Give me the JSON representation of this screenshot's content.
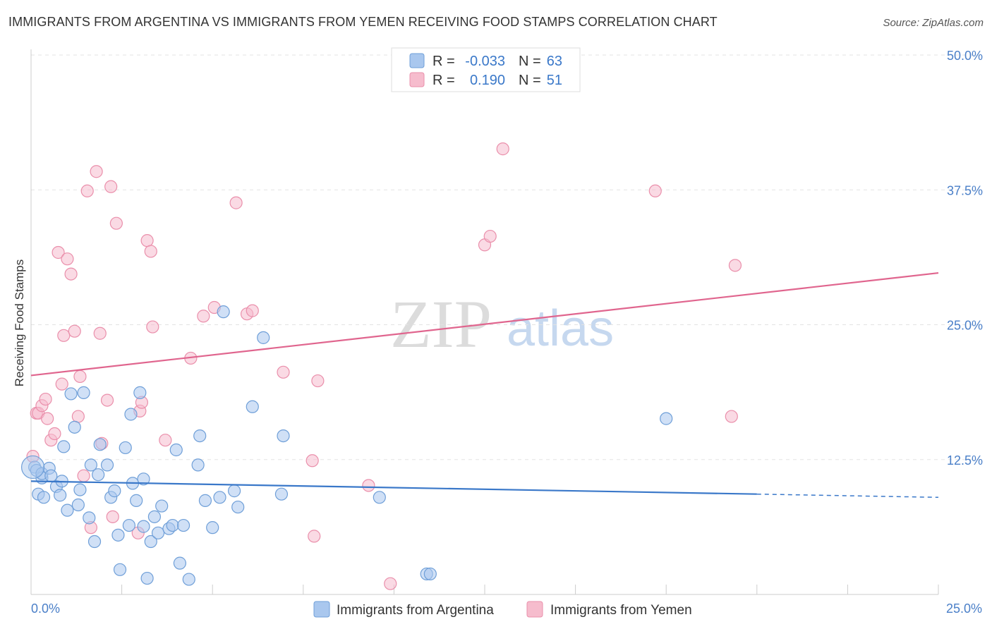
{
  "title": "IMMIGRANTS FROM ARGENTINA VS IMMIGRANTS FROM YEMEN RECEIVING FOOD STAMPS CORRELATION CHART",
  "source": "Source: ZipAtlas.com",
  "watermark": {
    "zip": "ZIP",
    "atlas": "atlas"
  },
  "colors": {
    "argentina_fill": "#a9c7ee",
    "argentina_stroke": "#6f9fd8",
    "argentina_line": "#3a78c9",
    "yemen_fill": "#f6bccd",
    "yemen_stroke": "#ea8fab",
    "yemen_line": "#e0658e",
    "grid": "#e3e3e3",
    "tick_label": "#4a7fc8"
  },
  "legend": {
    "rows": [
      {
        "r_label": "R =",
        "r_value": "-0.033",
        "n_label": "N =",
        "n_value": "63"
      },
      {
        "r_label": "R =",
        "r_value": "0.190",
        "n_label": "N =",
        "n_value": "51"
      }
    ]
  },
  "chart_data": {
    "type": "scatter",
    "title": "IMMIGRANTS FROM ARGENTINA VS IMMIGRANTS FROM YEMEN RECEIVING FOOD STAMPS CORRELATION CHART",
    "xlabel": "",
    "ylabel": "Receiving Food Stamps",
    "xlim": [
      0,
      25
    ],
    "ylim": [
      0,
      50
    ],
    "x_tick_labels": [
      "0.0%",
      "25.0%"
    ],
    "y_ticks": [
      12.5,
      25.0,
      37.5,
      50.0
    ],
    "y_tick_labels": [
      "12.5%",
      "25.0%",
      "37.5%",
      "50.0%"
    ],
    "grid": true,
    "legend_position": "top-center",
    "series": [
      {
        "name": "Immigrants from Argentina",
        "r": -0.033,
        "n": 63,
        "trend": {
          "x0": 0,
          "y0": 10.5,
          "x1": 20,
          "y1": 9.3,
          "dashed_to_x": 25,
          "dashed_to_y": 9.0
        },
        "points": [
          [
            0.1,
            11.8
          ],
          [
            0.15,
            11.5
          ],
          [
            0.2,
            9.3
          ],
          [
            0.3,
            10.8
          ],
          [
            0.3,
            11.2
          ],
          [
            0.35,
            9.0
          ],
          [
            0.5,
            11.7
          ],
          [
            0.55,
            11.0
          ],
          [
            0.7,
            10.0
          ],
          [
            0.8,
            9.2
          ],
          [
            0.85,
            10.5
          ],
          [
            0.9,
            13.7
          ],
          [
            1.0,
            7.8
          ],
          [
            1.1,
            18.6
          ],
          [
            1.2,
            15.5
          ],
          [
            1.3,
            8.3
          ],
          [
            1.35,
            9.7
          ],
          [
            1.45,
            18.7
          ],
          [
            1.6,
            7.1
          ],
          [
            1.65,
            12.0
          ],
          [
            1.75,
            4.9
          ],
          [
            1.85,
            11.1
          ],
          [
            1.9,
            13.9
          ],
          [
            2.1,
            12.0
          ],
          [
            2.2,
            9.0
          ],
          [
            2.3,
            9.6
          ],
          [
            2.4,
            5.5
          ],
          [
            2.45,
            2.3
          ],
          [
            2.6,
            13.6
          ],
          [
            2.7,
            6.4
          ],
          [
            2.75,
            16.7
          ],
          [
            2.8,
            10.3
          ],
          [
            2.9,
            8.7
          ],
          [
            3.0,
            18.7
          ],
          [
            3.1,
            10.7
          ],
          [
            3.1,
            6.3
          ],
          [
            3.2,
            1.5
          ],
          [
            3.3,
            4.9
          ],
          [
            3.4,
            7.2
          ],
          [
            3.5,
            5.7
          ],
          [
            3.6,
            8.2
          ],
          [
            3.8,
            6.1
          ],
          [
            3.9,
            6.4
          ],
          [
            4.0,
            13.4
          ],
          [
            4.1,
            2.9
          ],
          [
            4.2,
            6.4
          ],
          [
            4.35,
            1.4
          ],
          [
            4.6,
            12.0
          ],
          [
            4.65,
            14.7
          ],
          [
            4.8,
            8.7
          ],
          [
            5.0,
            6.2
          ],
          [
            5.2,
            9.0
          ],
          [
            5.3,
            26.2
          ],
          [
            5.6,
            9.6
          ],
          [
            5.7,
            8.1
          ],
          [
            6.1,
            17.4
          ],
          [
            6.4,
            23.8
          ],
          [
            6.9,
            9.3
          ],
          [
            6.95,
            14.7
          ],
          [
            9.6,
            9.0
          ],
          [
            10.9,
            1.9
          ],
          [
            11.0,
            1.9
          ],
          [
            17.5,
            16.3
          ]
        ]
      },
      {
        "name": "Immigrants from Yemen",
        "r": 0.19,
        "n": 51,
        "trend": {
          "x0": 0,
          "y0": 20.3,
          "x1": 25,
          "y1": 29.8
        },
        "points": [
          [
            0.05,
            12.8
          ],
          [
            0.15,
            16.8
          ],
          [
            0.2,
            16.8
          ],
          [
            0.3,
            17.5
          ],
          [
            0.4,
            18.1
          ],
          [
            0.45,
            16.3
          ],
          [
            0.55,
            14.3
          ],
          [
            0.65,
            14.9
          ],
          [
            0.75,
            31.7
          ],
          [
            0.85,
            19.5
          ],
          [
            0.9,
            24.0
          ],
          [
            1.0,
            31.1
          ],
          [
            1.1,
            29.7
          ],
          [
            1.2,
            24.4
          ],
          [
            1.3,
            16.5
          ],
          [
            1.35,
            20.2
          ],
          [
            1.45,
            11.0
          ],
          [
            1.55,
            37.4
          ],
          [
            1.65,
            6.2
          ],
          [
            1.8,
            39.2
          ],
          [
            1.9,
            24.2
          ],
          [
            1.95,
            14.0
          ],
          [
            2.1,
            18.0
          ],
          [
            2.2,
            37.8
          ],
          [
            2.25,
            7.2
          ],
          [
            2.35,
            34.4
          ],
          [
            2.95,
            5.7
          ],
          [
            3.0,
            17.0
          ],
          [
            3.05,
            17.8
          ],
          [
            3.2,
            32.8
          ],
          [
            3.3,
            31.8
          ],
          [
            3.35,
            24.8
          ],
          [
            3.7,
            14.3
          ],
          [
            4.4,
            21.9
          ],
          [
            4.75,
            25.8
          ],
          [
            5.05,
            26.6
          ],
          [
            5.65,
            36.3
          ],
          [
            5.95,
            26.0
          ],
          [
            6.1,
            26.3
          ],
          [
            6.95,
            20.6
          ],
          [
            7.75,
            12.4
          ],
          [
            7.8,
            5.4
          ],
          [
            7.9,
            19.8
          ],
          [
            9.3,
            10.1
          ],
          [
            9.9,
            1.0
          ],
          [
            13.0,
            41.3
          ],
          [
            12.5,
            32.4
          ],
          [
            12.65,
            33.2
          ],
          [
            17.2,
            37.4
          ],
          [
            19.4,
            30.5
          ],
          [
            19.3,
            16.5
          ]
        ]
      }
    ]
  }
}
